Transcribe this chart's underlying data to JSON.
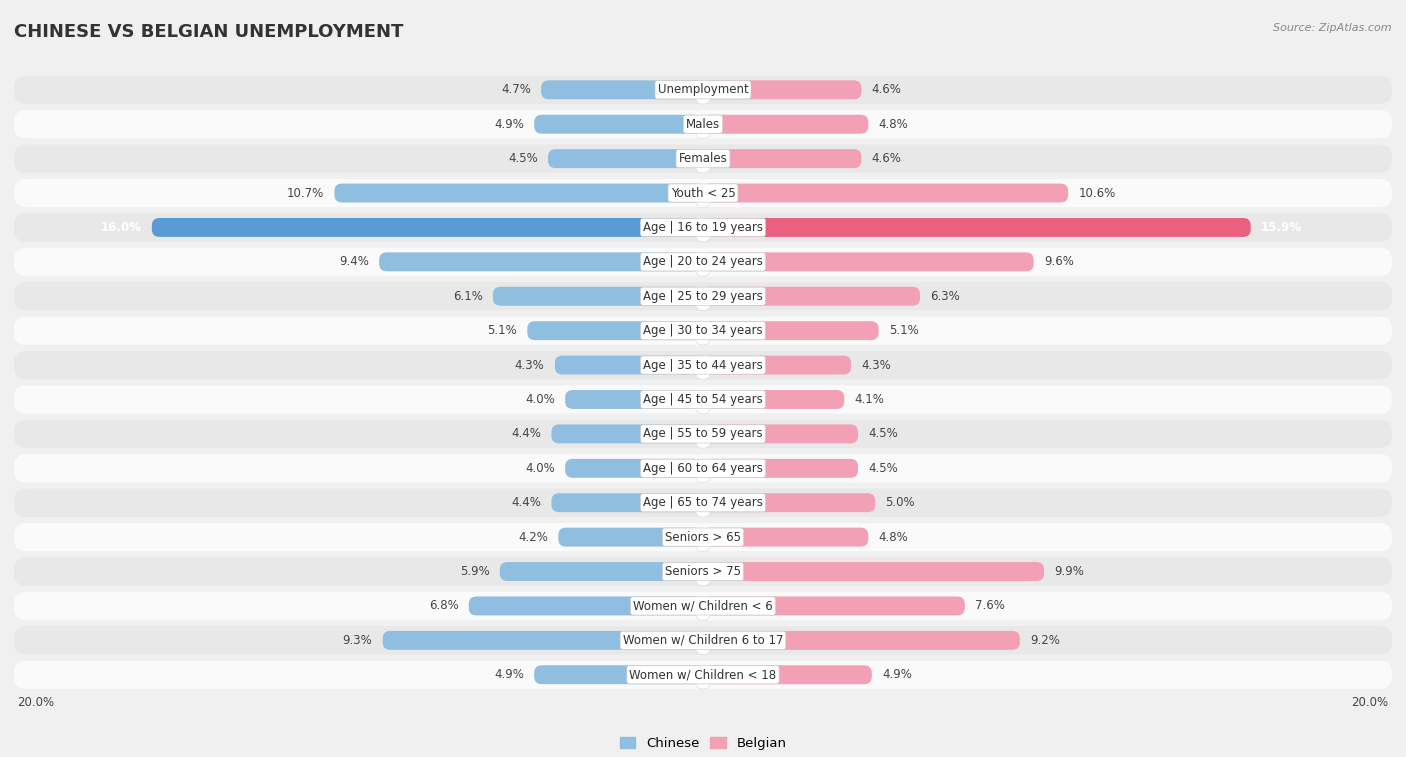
{
  "title": "CHINESE VS BELGIAN UNEMPLOYMENT",
  "source": "Source: ZipAtlas.com",
  "categories": [
    "Unemployment",
    "Males",
    "Females",
    "Youth < 25",
    "Age | 16 to 19 years",
    "Age | 20 to 24 years",
    "Age | 25 to 29 years",
    "Age | 30 to 34 years",
    "Age | 35 to 44 years",
    "Age | 45 to 54 years",
    "Age | 55 to 59 years",
    "Age | 60 to 64 years",
    "Age | 65 to 74 years",
    "Seniors > 65",
    "Seniors > 75",
    "Women w/ Children < 6",
    "Women w/ Children 6 to 17",
    "Women w/ Children < 18"
  ],
  "chinese": [
    4.7,
    4.9,
    4.5,
    10.7,
    16.0,
    9.4,
    6.1,
    5.1,
    4.3,
    4.0,
    4.4,
    4.0,
    4.4,
    4.2,
    5.9,
    6.8,
    9.3,
    4.9
  ],
  "belgian": [
    4.6,
    4.8,
    4.6,
    10.6,
    15.9,
    9.6,
    6.3,
    5.1,
    4.3,
    4.1,
    4.5,
    4.5,
    5.0,
    4.8,
    9.9,
    7.6,
    9.2,
    4.9
  ],
  "chinese_color": "#90BEE0",
  "belgian_color": "#F2A0B5",
  "chinese_color_highlight": "#5B9BD5",
  "belgian_color_highlight": "#E96080",
  "background_color": "#F0F0F0",
  "row_bg_light": "#E8E8E8",
  "row_bg_white": "#FAFAFA",
  "max_val": 20.0,
  "legend_chinese": "Chinese",
  "legend_belgian": "Belgian",
  "title_fontsize": 13,
  "label_fontsize": 8.5,
  "value_fontsize": 8.5
}
